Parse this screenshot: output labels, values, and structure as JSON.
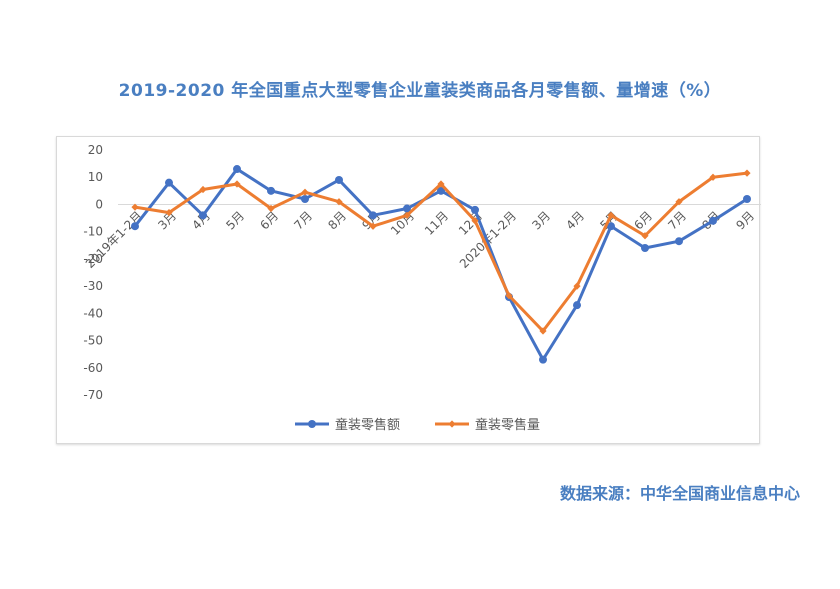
{
  "source": "数据来源：中华全国商业信息中心",
  "chart_data": {
    "type": "line",
    "title": "2019-2020 年全国重点大型零售企业童装类商品各月零售额、量增速（%）",
    "xlabel": "",
    "ylabel": "",
    "ylim": [
      -70,
      20
    ],
    "yticks": [
      20,
      10,
      0,
      -10,
      -20,
      -30,
      -40,
      -50,
      -60,
      -70
    ],
    "grid": false,
    "legend": "bottom",
    "categories": [
      "2019年1-2月",
      "3月",
      "4月",
      "5月",
      "6月",
      "7月",
      "8月",
      "9月",
      "10月",
      "11月",
      "12月",
      "2020年1-2月",
      "3月",
      "4月",
      "5月",
      "6月",
      "7月",
      "8月",
      "9月"
    ],
    "series": [
      {
        "name": "童装零售额",
        "color": "#4472c4",
        "values": [
          -8,
          8,
          -4,
          13,
          5,
          2,
          9,
          -4,
          -1.5,
          5,
          -2,
          -34,
          -57,
          -37,
          -8,
          -16,
          -13.5,
          -6,
          2
        ]
      },
      {
        "name": "童装零售量",
        "color": "#ed7d31",
        "values": [
          -1,
          -3,
          5.5,
          7.5,
          -1.5,
          4.5,
          1,
          -8,
          -4,
          7.5,
          -6,
          -33.5,
          -46.5,
          -30,
          -4,
          -11.5,
          1,
          10,
          11.5
        ]
      }
    ]
  }
}
